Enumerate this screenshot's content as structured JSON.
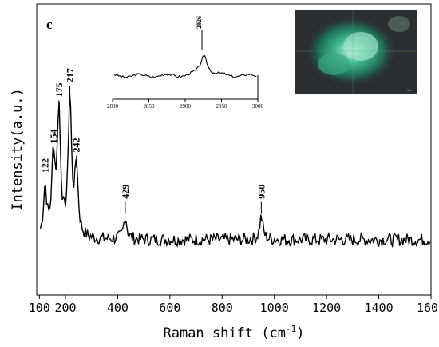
{
  "chart_data": [
    {
      "type": "line",
      "panel_label": "c",
      "xlabel": "Raman shift (cm",
      "xlabel_sup": "-1",
      "xlabel_close": ")",
      "ylabel": "Intensity(a.u.)",
      "xlim": [
        90,
        1600
      ],
      "ylim": [
        0,
        1.0
      ],
      "xticks": [
        100,
        200,
        400,
        600,
        800,
        1000,
        1200,
        1400,
        1600
      ],
      "xticklabels": [
        "100",
        "200",
        "400",
        "600",
        "800",
        "1000",
        "1200",
        "1400",
        "1600"
      ],
      "y_ticks_shown": false,
      "peaks": [
        {
          "x": 122,
          "y": 0.36,
          "label": "122"
        },
        {
          "x": 154,
          "y": 0.46,
          "label": "154"
        },
        {
          "x": 175,
          "y": 0.62,
          "label": "175"
        },
        {
          "x": 217,
          "y": 0.67,
          "label": "217"
        },
        {
          "x": 242,
          "y": 0.43,
          "label": "242"
        },
        {
          "x": 429,
          "y": 0.27,
          "label": "429"
        },
        {
          "x": 950,
          "y": 0.27,
          "label": "950"
        }
      ],
      "baseline": 0.19,
      "noise_amplitude": 0.022
    },
    {
      "type": "line",
      "role": "inset",
      "xlim": [
        2800,
        3000
      ],
      "xticks": [
        2800,
        2850,
        2900,
        2950,
        3000
      ],
      "xticklabels": [
        "2800",
        "2850",
        "2900",
        "2950",
        "3000"
      ],
      "peaks": [
        {
          "x": 2926,
          "y": 0.55,
          "label": "2926"
        }
      ]
    }
  ],
  "inset_image": {
    "kind": "optical micrograph",
    "dominant_color": "#2a9a78",
    "background": "#2b2f33"
  },
  "colors": {
    "line": "#000000",
    "axis": "#000000"
  }
}
